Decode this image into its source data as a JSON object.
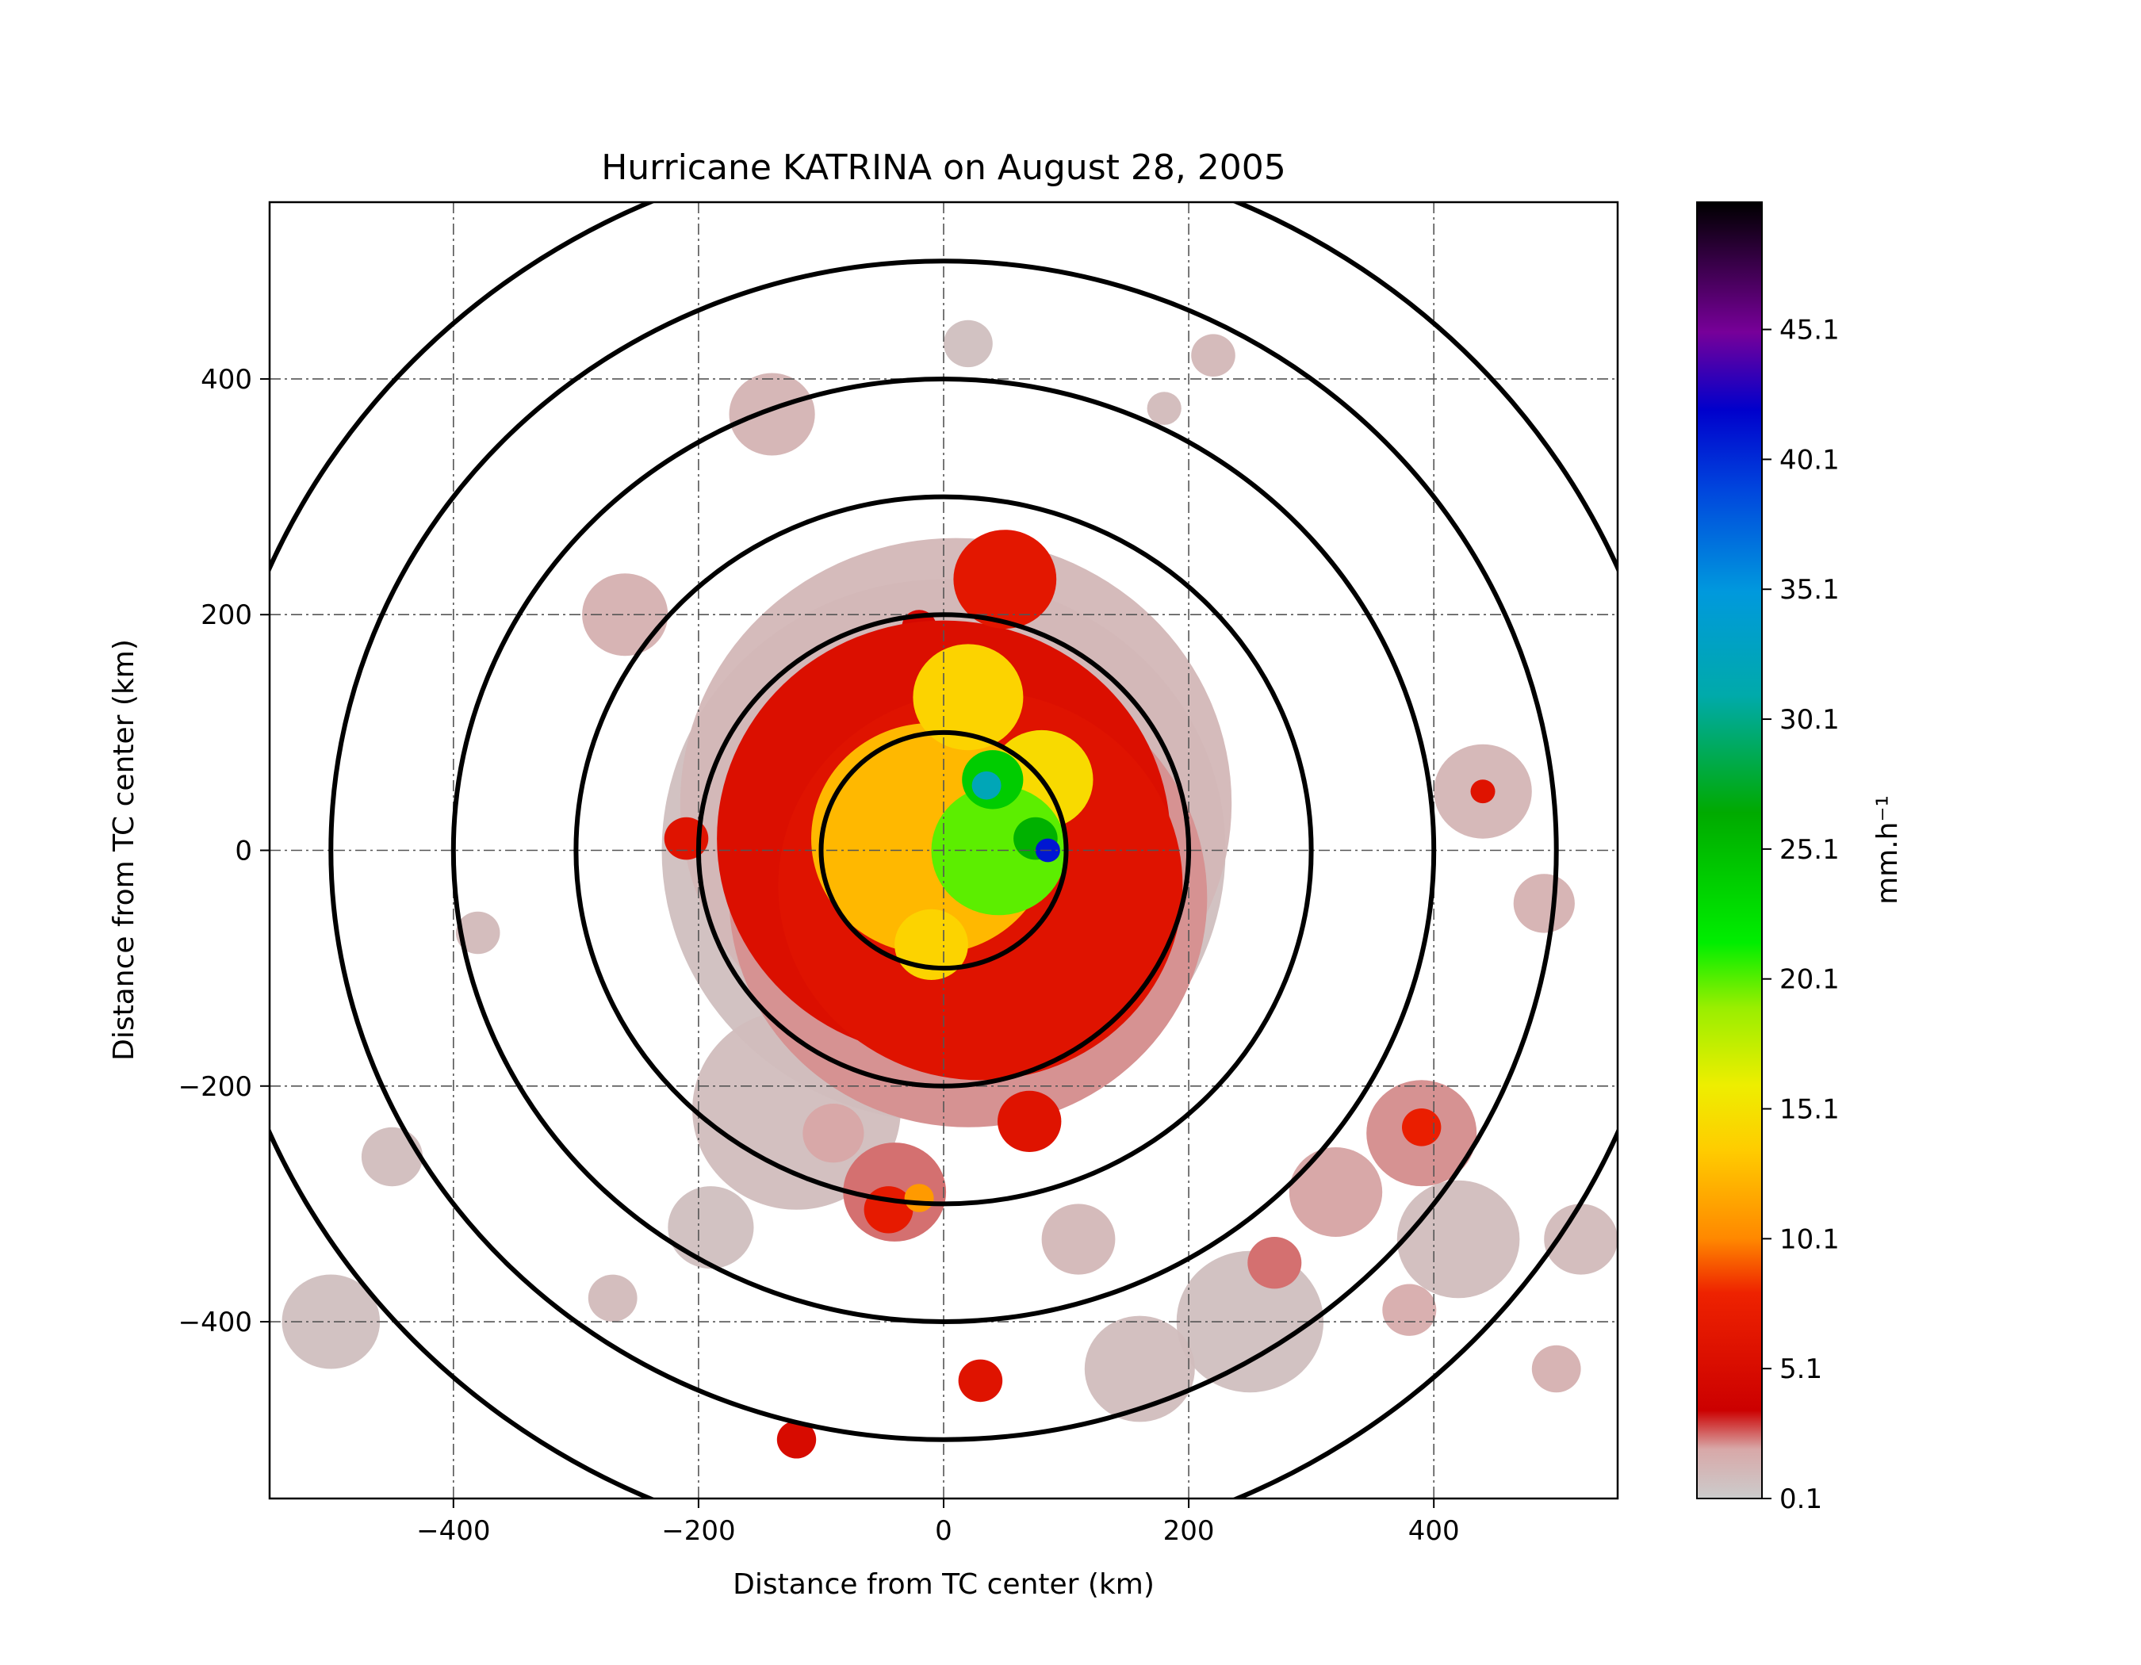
{
  "chart_data": {
    "type": "heatmap",
    "title": "Hurricane KATRINA on August 28, 2005",
    "xlabel": "Distance from TC center (km)",
    "ylabel": "Distance from TC center (km)",
    "xlim": [
      -550,
      550
    ],
    "ylim": [
      -550,
      550
    ],
    "xticks": [
      -400,
      -200,
      0,
      200,
      400
    ],
    "yticks": [
      -400,
      -200,
      0,
      200,
      400
    ],
    "x_tick_labels": [
      "−400",
      "−200",
      "0",
      "200",
      "400"
    ],
    "y_tick_labels": [
      "−400",
      "−200",
      "0",
      "200",
      "400"
    ],
    "grid": true,
    "range_rings_km": [
      100,
      200,
      300,
      400,
      500,
      600
    ],
    "colorbar": {
      "label": "mm.h⁻¹",
      "range": [
        0.1,
        50
      ],
      "tick_values": [
        0.1,
        5.1,
        10.1,
        15.1,
        20.1,
        25.1,
        30.1,
        35.1,
        40.1,
        45.1
      ],
      "tick_labels": [
        "0.1",
        "5.1",
        "10.1",
        "15.1",
        "20.1",
        "25.1",
        "30.1",
        "35.1",
        "40.1",
        "45.1"
      ],
      "color_stops": [
        {
          "value": 0.1,
          "color": "#cccccc"
        },
        {
          "value": 2.0,
          "color": "#d8a8a8"
        },
        {
          "value": 3.5,
          "color": "#cc0000"
        },
        {
          "value": 8.0,
          "color": "#ee2200"
        },
        {
          "value": 10.1,
          "color": "#ff8800"
        },
        {
          "value": 13.5,
          "color": "#ffcc00"
        },
        {
          "value": 16.0,
          "color": "#eeee00"
        },
        {
          "value": 19.0,
          "color": "#99ee00"
        },
        {
          "value": 21.5,
          "color": "#00ee00"
        },
        {
          "value": 26.5,
          "color": "#00aa00"
        },
        {
          "value": 31.0,
          "color": "#00aaaa"
        },
        {
          "value": 35.0,
          "color": "#0099dd"
        },
        {
          "value": 39.0,
          "color": "#0044dd"
        },
        {
          "value": 42.0,
          "color": "#0000cc"
        },
        {
          "value": 45.0,
          "color": "#770099"
        },
        {
          "value": 50.0,
          "color": "#000000"
        }
      ]
    },
    "features": [
      {
        "x": 0,
        "y": 0,
        "r": 230,
        "v": 0.8
      },
      {
        "x": 10,
        "y": 40,
        "r": 225,
        "v": 1.2
      },
      {
        "x": 20,
        "y": -40,
        "r": 195,
        "v": 2.2
      },
      {
        "x": 0,
        "y": 10,
        "r": 185,
        "v": 5.5
      },
      {
        "x": 30,
        "y": -30,
        "r": 165,
        "v": 6.0
      },
      {
        "x": 50,
        "y": 230,
        "r": 42,
        "v": 6.5
      },
      {
        "x": -20,
        "y": 190,
        "r": 14,
        "v": 4.5
      },
      {
        "x": -10,
        "y": 10,
        "r": 98,
        "v": 12.5
      },
      {
        "x": 20,
        "y": 130,
        "r": 45,
        "v": 14.0
      },
      {
        "x": 80,
        "y": 60,
        "r": 42,
        "v": 14.5
      },
      {
        "x": -70,
        "y": 40,
        "r": 28,
        "v": 11.0
      },
      {
        "x": -70,
        "y": -10,
        "r": 50,
        "v": 4.0
      },
      {
        "x": 10,
        "y": 10,
        "r": 30,
        "v": 4.5
      },
      {
        "x": 45,
        "y": 0,
        "r": 55,
        "v": 20.0
      },
      {
        "x": 40,
        "y": 60,
        "r": 25,
        "v": 24.0
      },
      {
        "x": 35,
        "y": 55,
        "r": 12,
        "v": 32.0
      },
      {
        "x": 75,
        "y": 10,
        "r": 18,
        "v": 26.0
      },
      {
        "x": 85,
        "y": 0,
        "r": 10,
        "v": 41.0
      },
      {
        "x": -10,
        "y": -80,
        "r": 30,
        "v": 14.0
      },
      {
        "x": -210,
        "y": 10,
        "r": 18,
        "v": 6.0
      },
      {
        "x": -260,
        "y": 200,
        "r": 35,
        "v": 1.6
      },
      {
        "x": -140,
        "y": 370,
        "r": 35,
        "v": 1.4
      },
      {
        "x": 220,
        "y": 420,
        "r": 18,
        "v": 1.2
      },
      {
        "x": 180,
        "y": 375,
        "r": 14,
        "v": 1.0
      },
      {
        "x": 440,
        "y": 50,
        "r": 40,
        "v": 1.3
      },
      {
        "x": 440,
        "y": 50,
        "r": 10,
        "v": 6.0
      },
      {
        "x": 490,
        "y": -45,
        "r": 25,
        "v": 1.5
      },
      {
        "x": -380,
        "y": -70,
        "r": 18,
        "v": 1.1
      },
      {
        "x": -40,
        "y": -290,
        "r": 42,
        "v": 2.5
      },
      {
        "x": -45,
        "y": -305,
        "r": 20,
        "v": 7.0
      },
      {
        "x": -20,
        "y": -295,
        "r": 12,
        "v": 11.0
      },
      {
        "x": 70,
        "y": -230,
        "r": 26,
        "v": 6.0
      },
      {
        "x": -120,
        "y": -220,
        "r": 85,
        "v": 0.9
      },
      {
        "x": -90,
        "y": -240,
        "r": 25,
        "v": 2.0
      },
      {
        "x": 30,
        "y": -450,
        "r": 18,
        "v": 6.0
      },
      {
        "x": -120,
        "y": -500,
        "r": 16,
        "v": 5.0
      },
      {
        "x": 390,
        "y": -240,
        "r": 45,
        "v": 2.2
      },
      {
        "x": 390,
        "y": -235,
        "r": 16,
        "v": 7.5
      },
      {
        "x": 320,
        "y": -290,
        "r": 38,
        "v": 2.0
      },
      {
        "x": 420,
        "y": -330,
        "r": 50,
        "v": 0.9
      },
      {
        "x": 250,
        "y": -400,
        "r": 60,
        "v": 0.8
      },
      {
        "x": 160,
        "y": -440,
        "r": 45,
        "v": 0.9
      },
      {
        "x": 270,
        "y": -350,
        "r": 22,
        "v": 2.5
      },
      {
        "x": 110,
        "y": -330,
        "r": 30,
        "v": 1.2
      },
      {
        "x": -500,
        "y": -400,
        "r": 40,
        "v": 0.8
      },
      {
        "x": 500,
        "y": -440,
        "r": 20,
        "v": 1.6
      },
      {
        "x": -270,
        "y": -380,
        "r": 20,
        "v": 1.0
      },
      {
        "x": 20,
        "y": 430,
        "r": 20,
        "v": 0.8
      },
      {
        "x": -450,
        "y": -260,
        "r": 25,
        "v": 0.9
      },
      {
        "x": 380,
        "y": -390,
        "r": 22,
        "v": 1.8
      },
      {
        "x": -190,
        "y": -320,
        "r": 35,
        "v": 0.8
      },
      {
        "x": 520,
        "y": -330,
        "r": 30,
        "v": 1.0
      }
    ]
  }
}
